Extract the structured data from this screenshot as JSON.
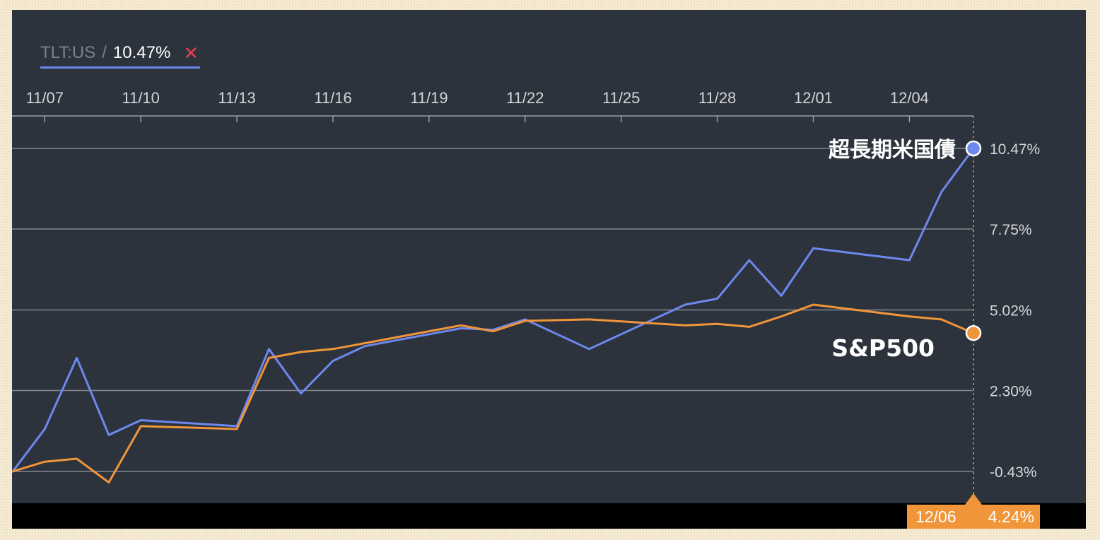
{
  "legend": {
    "ticker": "TLT:US",
    "separator": "/",
    "value": "10.47%",
    "close_icon": "close-icon"
  },
  "crosshair": {
    "date": "12/06",
    "value": "4.24%"
  },
  "colors": {
    "background": "#2c333c",
    "tlt": "#6d88ee",
    "spx": "#f1953a",
    "grid": "#9a9ea5",
    "text": "#d4d6da"
  },
  "chart_data": {
    "type": "line",
    "x_ticks": [
      "11/07",
      "11/10",
      "11/13",
      "11/16",
      "11/19",
      "11/22",
      "11/25",
      "11/28",
      "12/01",
      "12/04"
    ],
    "y_ticks": [
      "10.47%",
      "7.75%",
      "5.02%",
      "2.30%",
      "-0.43%"
    ],
    "ylim": [
      -1.5,
      11.6
    ],
    "grid": true,
    "series": [
      {
        "name": "超長期米国債",
        "values": [
          [
            0,
            -0.43
          ],
          [
            1,
            1.0
          ],
          [
            2,
            3.4
          ],
          [
            3,
            0.8
          ],
          [
            4,
            1.3
          ],
          [
            7,
            1.1
          ],
          [
            8,
            3.7
          ],
          [
            9,
            2.2
          ],
          [
            10,
            3.3
          ],
          [
            11,
            3.8
          ],
          [
            14,
            4.4
          ],
          [
            15,
            4.35
          ],
          [
            16,
            4.7
          ],
          [
            18,
            3.7
          ],
          [
            21,
            5.2
          ],
          [
            22,
            5.4
          ],
          [
            23,
            6.7
          ],
          [
            24,
            5.5
          ],
          [
            25,
            7.1
          ],
          [
            28,
            6.7
          ],
          [
            29,
            9.0
          ],
          [
            30,
            10.47
          ]
        ]
      },
      {
        "name": "S&P500",
        "values": [
          [
            0,
            -0.43
          ],
          [
            1,
            -0.1
          ],
          [
            2,
            0.0
          ],
          [
            3,
            -0.8
          ],
          [
            4,
            1.1
          ],
          [
            7,
            1.0
          ],
          [
            8,
            3.4
          ],
          [
            9,
            3.6
          ],
          [
            10,
            3.7
          ],
          [
            11,
            3.9
          ],
          [
            14,
            4.5
          ],
          [
            15,
            4.3
          ],
          [
            16,
            4.65
          ],
          [
            18,
            4.7
          ],
          [
            21,
            4.5
          ],
          [
            22,
            4.55
          ],
          [
            23,
            4.45
          ],
          [
            24,
            4.8
          ],
          [
            25,
            5.2
          ],
          [
            28,
            4.8
          ],
          [
            29,
            4.7
          ],
          [
            30,
            4.24
          ]
        ]
      }
    ]
  }
}
